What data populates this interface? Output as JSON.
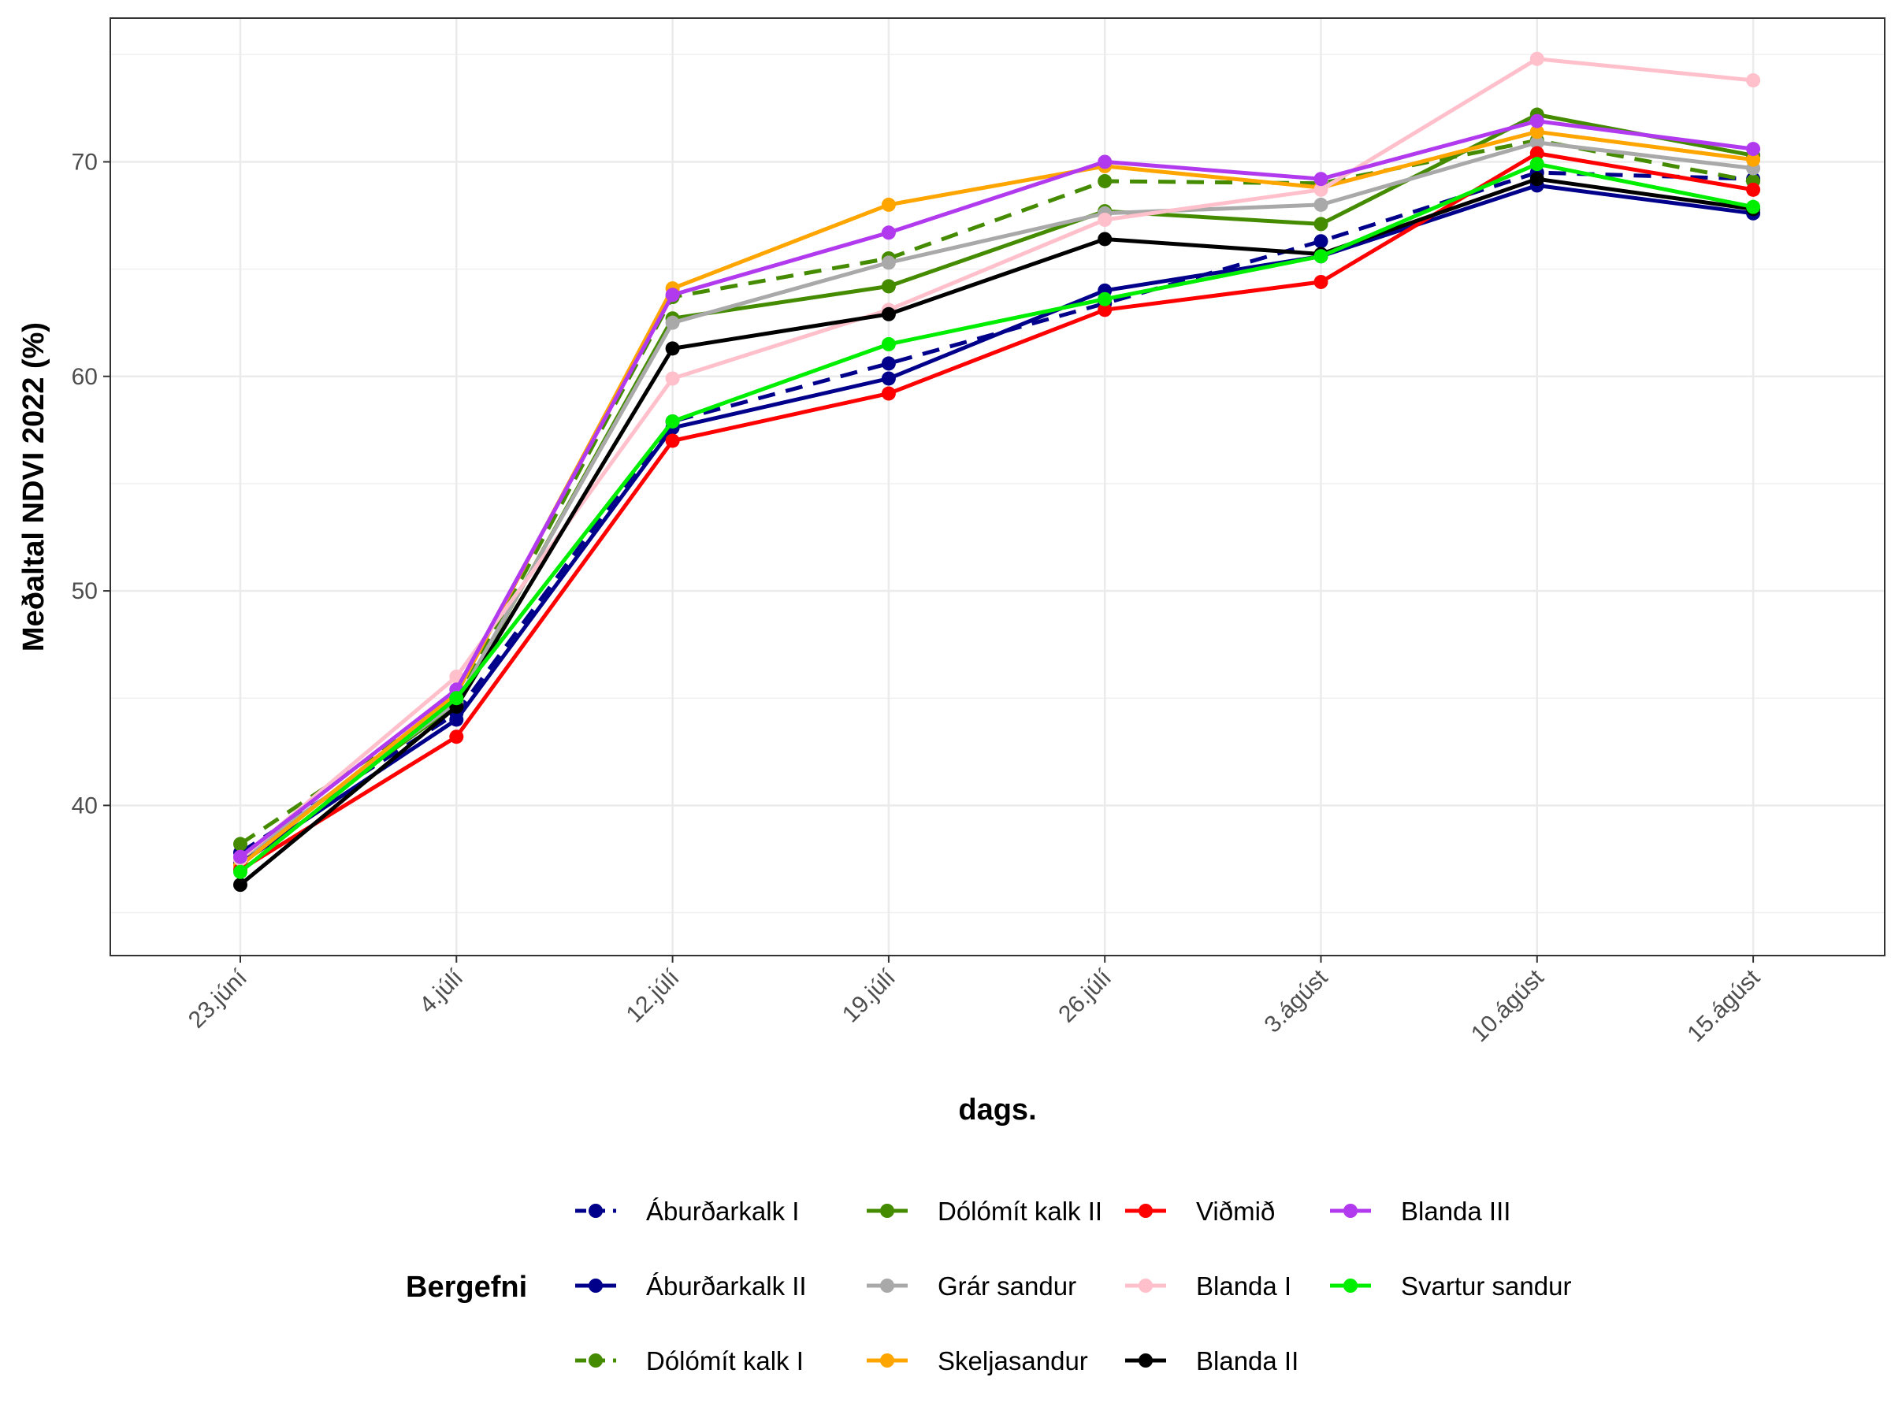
{
  "chart_data": {
    "type": "line",
    "xlabel": "dags.",
    "ylabel": "Meðaltal NDVI 2022 (%)",
    "categories": [
      "23.júní",
      "4.júlí",
      "12.júlí",
      "19.júlí",
      "26.júlí",
      "3.ágúst",
      "10.ágúst",
      "15.ágúst"
    ],
    "ylim": [
      33,
      76.7
    ],
    "y_ticks": [
      40,
      50,
      60,
      70
    ],
    "grid": true,
    "legend": {
      "title": "Bergefni",
      "position": "bottom",
      "columns": 4
    },
    "series": [
      {
        "name": "Áburðarkalk I",
        "color": "#00008B",
        "dashed": true,
        "values": [
          37.8,
          44.3,
          57.9,
          60.6,
          63.4,
          66.3,
          69.5,
          69.2
        ]
      },
      {
        "name": "Áburðarkalk II",
        "color": "#00008B",
        "dashed": false,
        "values": [
          37.3,
          44.0,
          57.6,
          59.9,
          64.0,
          65.6,
          68.9,
          67.6
        ]
      },
      {
        "name": "Dólómít kalk I",
        "color": "#458B00",
        "dashed": true,
        "values": [
          38.2,
          44.9,
          63.7,
          65.5,
          69.1,
          69.0,
          71.0,
          69.1
        ]
      },
      {
        "name": "Dólómít kalk II",
        "color": "#458B00",
        "dashed": false,
        "values": [
          37.5,
          44.7,
          62.7,
          64.2,
          67.7,
          67.1,
          72.2,
          70.3
        ]
      },
      {
        "name": "Grár sandur",
        "color": "#A9A9A9",
        "dashed": false,
        "values": [
          37.5,
          44.8,
          62.5,
          65.3,
          67.6,
          68.0,
          70.9,
          69.7
        ]
      },
      {
        "name": "Skeljasandur",
        "color": "#FFA500",
        "dashed": false,
        "values": [
          37.2,
          45.2,
          64.1,
          68.0,
          69.8,
          68.8,
          71.4,
          70.1
        ]
      },
      {
        "name": "Viðmið",
        "color": "#FF0000",
        "dashed": false,
        "values": [
          37.0,
          43.2,
          57.0,
          59.2,
          63.1,
          64.4,
          70.4,
          68.7
        ]
      },
      {
        "name": "Blanda I",
        "color": "#FFC0CB",
        "dashed": false,
        "values": [
          37.5,
          46.0,
          59.9,
          63.1,
          67.3,
          68.7,
          74.8,
          73.8
        ]
      },
      {
        "name": "Blanda II",
        "color": "#000000",
        "dashed": false,
        "values": [
          36.3,
          44.6,
          61.3,
          62.9,
          66.4,
          65.7,
          69.2,
          67.8
        ]
      },
      {
        "name": "Blanda III",
        "color": "#B23AEE",
        "dashed": false,
        "values": [
          37.6,
          45.4,
          63.8,
          66.7,
          70.0,
          69.2,
          71.9,
          70.6
        ]
      },
      {
        "name": "Svartur sandur",
        "color": "#00EE00",
        "dashed": false,
        "values": [
          36.9,
          45.0,
          57.9,
          61.5,
          63.6,
          65.6,
          69.9,
          67.9
        ]
      }
    ]
  }
}
